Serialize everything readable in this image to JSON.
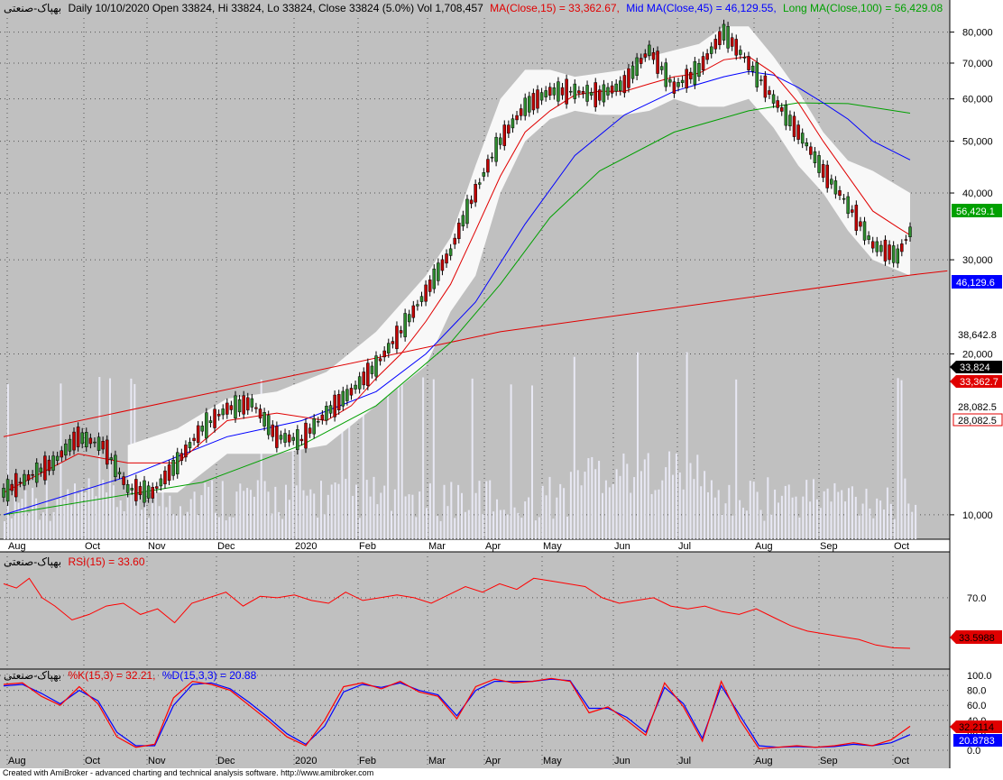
{
  "colors": {
    "bg": "#c0c0c0",
    "price_red": "#e00000",
    "mid_blue": "#0000ff",
    "long_green": "#00a000",
    "band": "#ffffff",
    "rsi": "#ff0000",
    "k": "#ff0000",
    "d": "#0000ff"
  },
  "header": {
    "symbol": "بهپاک-صنعتی",
    "main": "Daily 10/10/2020 Open 33824, Hi 33824, Lo 33824, Close 33824 (5.0%) Vol 1,708,457",
    "ma": "MA(Close,15) = 33,362.67,",
    "mid": "Mid MA(Close,45) = 46,129.55,",
    "long": "Long MA(Close,100) = 56,429.08"
  },
  "rsi_header": {
    "symbol": "بهپاک-صنعتی",
    "label": "RSI(15) = 33.60"
  },
  "stoch_header": {
    "symbol": "بهپاک-صنعتی",
    "k": "%K(15,3) = 32.21,",
    "d": "%D(15,3,3) = 20.88"
  },
  "credits": "Created with AmiBroker - advanced charting and technical analysis software. http://www.amibroker.com",
  "value_badges": {
    "ma_long": "56,429.1",
    "ma_mid": "46,129.6",
    "lastclose": "38,642.8",
    "close": "33,824",
    "ma15": "33,362.7",
    "trend_a": "28,082.5",
    "trend_b": "28,082.5",
    "rsi": "33.5988",
    "k": "32.2114",
    "d": "20.8783"
  },
  "chart_data": [
    {
      "type": "candlestick",
      "name": "price",
      "ylim": [
        9000,
        85000
      ],
      "yticks": [
        {
          "v": 10000,
          "label": "10,000"
        },
        {
          "v": 20000,
          "label": "20,000"
        },
        {
          "v": 30000,
          "label": "30,000"
        },
        {
          "v": 40000,
          "label": "40,000"
        },
        {
          "v": 50000,
          "label": "50,000"
        },
        {
          "v": 60000,
          "label": "60,000"
        },
        {
          "v": 70000,
          "label": "70,000"
        },
        {
          "v": 80000,
          "label": "80,000"
        }
      ],
      "xticks": [
        "Aug",
        "Oct",
        "Nov",
        "Dec",
        "2020",
        "Feb",
        "Mar",
        "Apr",
        "May",
        "Jun",
        "Jul",
        "Aug",
        "Sep",
        "Oct"
      ],
      "close_points": [
        [
          0,
          11000
        ],
        [
          4,
          12500
        ],
        [
          6,
          14000
        ],
        [
          8,
          13500
        ],
        [
          10,
          11200
        ],
        [
          12,
          11000
        ],
        [
          14,
          12500
        ],
        [
          16,
          14500
        ],
        [
          18,
          15800
        ],
        [
          20,
          16200
        ],
        [
          22,
          14000
        ],
        [
          24,
          13800
        ],
        [
          26,
          15500
        ],
        [
          28,
          17000
        ],
        [
          30,
          19000
        ],
        [
          32,
          22000
        ],
        [
          34,
          26000
        ],
        [
          36,
          31000
        ],
        [
          38,
          40000
        ],
        [
          40,
          50000
        ],
        [
          42,
          58000
        ],
        [
          44,
          62000
        ],
        [
          46,
          62000
        ],
        [
          48,
          61000
        ],
        [
          50,
          64000
        ],
        [
          52,
          74000
        ],
        [
          54,
          63000
        ],
        [
          56,
          68000
        ],
        [
          58,
          80000
        ],
        [
          60,
          70000
        ],
        [
          62,
          60000
        ],
        [
          64,
          52000
        ],
        [
          66,
          44000
        ],
        [
          68,
          38000
        ],
        [
          70,
          32000
        ],
        [
          72,
          30500
        ],
        [
          73,
          33824
        ]
      ],
      "ma15": [
        [
          0,
          11000
        ],
        [
          6,
          13000
        ],
        [
          10,
          12500
        ],
        [
          14,
          12500
        ],
        [
          18,
          15000
        ],
        [
          22,
          15500
        ],
        [
          26,
          15000
        ],
        [
          28,
          16000
        ],
        [
          30,
          18000
        ],
        [
          32,
          20000
        ],
        [
          34,
          23000
        ],
        [
          36,
          27000
        ],
        [
          38,
          34000
        ],
        [
          40,
          43000
        ],
        [
          42,
          52000
        ],
        [
          44,
          57000
        ],
        [
          46,
          61000
        ],
        [
          48,
          62000
        ],
        [
          50,
          62000
        ],
        [
          52,
          64000
        ],
        [
          54,
          66000
        ],
        [
          56,
          67000
        ],
        [
          58,
          71000
        ],
        [
          60,
          72000
        ],
        [
          62,
          67000
        ],
        [
          64,
          59000
        ],
        [
          66,
          50000
        ],
        [
          68,
          43000
        ],
        [
          70,
          37000
        ],
        [
          72,
          34500
        ],
        [
          73,
          33362.67
        ]
      ],
      "ma45": [
        [
          0,
          10000
        ],
        [
          10,
          11800
        ],
        [
          18,
          14000
        ],
        [
          24,
          15000
        ],
        [
          30,
          17000
        ],
        [
          34,
          20000
        ],
        [
          38,
          25000
        ],
        [
          42,
          35000
        ],
        [
          46,
          47000
        ],
        [
          50,
          56000
        ],
        [
          54,
          62000
        ],
        [
          58,
          66000
        ],
        [
          60,
          67500
        ],
        [
          62,
          66500
        ],
        [
          64,
          63000
        ],
        [
          66,
          59000
        ],
        [
          68,
          55000
        ],
        [
          70,
          50000
        ],
        [
          73,
          46129.55
        ]
      ],
      "ma100": [
        [
          0,
          10000
        ],
        [
          16,
          11500
        ],
        [
          24,
          13500
        ],
        [
          30,
          16000
        ],
        [
          36,
          21000
        ],
        [
          40,
          27000
        ],
        [
          44,
          36000
        ],
        [
          48,
          44000
        ],
        [
          54,
          52000
        ],
        [
          60,
          57000
        ],
        [
          64,
          59000
        ],
        [
          68,
          58800
        ],
        [
          73,
          56429.08
        ]
      ],
      "band_upper": [
        [
          10,
          13500
        ],
        [
          14,
          14500
        ],
        [
          18,
          16500
        ],
        [
          22,
          17000
        ],
        [
          26,
          18500
        ],
        [
          30,
          22000
        ],
        [
          34,
          28000
        ],
        [
          36,
          33000
        ],
        [
          38,
          45000
        ],
        [
          40,
          60000
        ],
        [
          42,
          68000
        ],
        [
          44,
          68000
        ],
        [
          46,
          66000
        ],
        [
          50,
          68000
        ],
        [
          52,
          72000
        ],
        [
          54,
          74000
        ],
        [
          56,
          76000
        ],
        [
          58,
          82000
        ],
        [
          60,
          82000
        ],
        [
          62,
          72000
        ],
        [
          64,
          62000
        ],
        [
          66,
          52000
        ],
        [
          68,
          46000
        ],
        [
          70,
          44000
        ],
        [
          73,
          40000
        ]
      ],
      "band_lower": [
        [
          10,
          11000
        ],
        [
          14,
          11000
        ],
        [
          18,
          13000
        ],
        [
          22,
          13000
        ],
        [
          26,
          13500
        ],
        [
          30,
          16000
        ],
        [
          34,
          19000
        ],
        [
          36,
          24000
        ],
        [
          38,
          28000
        ],
        [
          40,
          40000
        ],
        [
          42,
          50000
        ],
        [
          44,
          55000
        ],
        [
          46,
          57000
        ],
        [
          48,
          56000
        ],
        [
          50,
          56000
        ],
        [
          52,
          57000
        ],
        [
          54,
          60000
        ],
        [
          56,
          58000
        ],
        [
          58,
          58000
        ],
        [
          60,
          60000
        ],
        [
          62,
          53000
        ],
        [
          64,
          45000
        ],
        [
          66,
          40000
        ],
        [
          68,
          34000
        ],
        [
          70,
          30000
        ],
        [
          73,
          28000
        ]
      ],
      "trendline_upper": [
        [
          0,
          14000
        ],
        [
          40,
          22000
        ],
        [
          73,
          28082.5
        ],
        [
          76,
          28600
        ]
      ],
      "trendline_lower": [
        [
          0,
          9500
        ],
        [
          30,
          15000
        ],
        [
          50,
          22000
        ]
      ]
    },
    {
      "type": "line",
      "name": "RSI(15)",
      "ylim": [
        20,
        90
      ],
      "yticks": [
        {
          "v": 70,
          "label": "70.0"
        }
      ],
      "values": [
        [
          0,
          80
        ],
        [
          3,
          77
        ],
        [
          6,
          84
        ],
        [
          9,
          70
        ],
        [
          12,
          64
        ],
        [
          16,
          54
        ],
        [
          20,
          58
        ],
        [
          24,
          64
        ],
        [
          28,
          66
        ],
        [
          32,
          58
        ],
        [
          36,
          62
        ],
        [
          40,
          52
        ],
        [
          44,
          66
        ],
        [
          48,
          70
        ],
        [
          52,
          74
        ],
        [
          56,
          64
        ],
        [
          60,
          71
        ],
        [
          64,
          70
        ],
        [
          68,
          72
        ],
        [
          72,
          68
        ],
        [
          76,
          66
        ],
        [
          80,
          74
        ],
        [
          84,
          68
        ],
        [
          88,
          70
        ],
        [
          92,
          72
        ],
        [
          96,
          70
        ],
        [
          100,
          66
        ],
        [
          104,
          72
        ],
        [
          108,
          78
        ],
        [
          112,
          74
        ],
        [
          116,
          80
        ],
        [
          120,
          76
        ],
        [
          124,
          84
        ],
        [
          128,
          82
        ],
        [
          132,
          80
        ],
        [
          136,
          78
        ],
        [
          140,
          70
        ],
        [
          144,
          66
        ],
        [
          148,
          68
        ],
        [
          152,
          70
        ],
        [
          156,
          64
        ],
        [
          160,
          62
        ],
        [
          164,
          64
        ],
        [
          168,
          60
        ],
        [
          172,
          58
        ],
        [
          176,
          62
        ],
        [
          180,
          56
        ],
        [
          184,
          50
        ],
        [
          188,
          46
        ],
        [
          192,
          44
        ],
        [
          196,
          42
        ],
        [
          200,
          40
        ],
        [
          204,
          36
        ],
        [
          208,
          34
        ],
        [
          212,
          33.6
        ]
      ]
    },
    {
      "type": "line",
      "name": "Stochastic",
      "ylim": [
        0,
        100
      ],
      "yticks": [
        {
          "v": 100,
          "label": "100.0"
        },
        {
          "v": 80,
          "label": "80.0"
        },
        {
          "v": 60,
          "label": "60.0"
        },
        {
          "v": 40,
          "label": "40.0"
        },
        {
          "v": 20,
          "label": "20.0"
        },
        {
          "v": 0,
          "label": "0.0"
        }
      ],
      "k_values": [
        [
          0,
          88
        ],
        [
          4,
          90
        ],
        [
          8,
          72
        ],
        [
          12,
          60
        ],
        [
          16,
          85
        ],
        [
          20,
          62
        ],
        [
          24,
          18
        ],
        [
          28,
          4
        ],
        [
          32,
          8
        ],
        [
          36,
          70
        ],
        [
          40,
          92
        ],
        [
          44,
          88
        ],
        [
          48,
          80
        ],
        [
          52,
          60
        ],
        [
          56,
          40
        ],
        [
          60,
          18
        ],
        [
          64,
          6
        ],
        [
          68,
          40
        ],
        [
          72,
          85
        ],
        [
          76,
          90
        ],
        [
          80,
          82
        ],
        [
          84,
          92
        ],
        [
          88,
          78
        ],
        [
          92,
          72
        ],
        [
          96,
          42
        ],
        [
          100,
          85
        ],
        [
          104,
          95
        ],
        [
          108,
          90
        ],
        [
          112,
          92
        ],
        [
          116,
          96
        ],
        [
          120,
          92
        ],
        [
          124,
          50
        ],
        [
          128,
          58
        ],
        [
          132,
          40
        ],
        [
          136,
          20
        ],
        [
          140,
          90
        ],
        [
          144,
          58
        ],
        [
          148,
          12
        ],
        [
          152,
          92
        ],
        [
          156,
          40
        ],
        [
          160,
          2
        ],
        [
          164,
          4
        ],
        [
          168,
          6
        ],
        [
          172,
          4
        ],
        [
          176,
          6
        ],
        [
          180,
          10
        ],
        [
          184,
          6
        ],
        [
          188,
          14
        ],
        [
          192,
          32
        ]
      ],
      "d_values": [
        [
          0,
          86
        ],
        [
          4,
          88
        ],
        [
          8,
          76
        ],
        [
          12,
          62
        ],
        [
          16,
          80
        ],
        [
          20,
          66
        ],
        [
          24,
          24
        ],
        [
          28,
          6
        ],
        [
          32,
          6
        ],
        [
          36,
          60
        ],
        [
          40,
          88
        ],
        [
          44,
          90
        ],
        [
          48,
          82
        ],
        [
          52,
          64
        ],
        [
          56,
          44
        ],
        [
          60,
          22
        ],
        [
          64,
          8
        ],
        [
          68,
          32
        ],
        [
          72,
          78
        ],
        [
          76,
          88
        ],
        [
          80,
          84
        ],
        [
          84,
          90
        ],
        [
          88,
          80
        ],
        [
          92,
          74
        ],
        [
          96,
          46
        ],
        [
          100,
          80
        ],
        [
          104,
          92
        ],
        [
          108,
          92
        ],
        [
          112,
          92
        ],
        [
          116,
          95
        ],
        [
          120,
          93
        ],
        [
          124,
          56
        ],
        [
          128,
          56
        ],
        [
          132,
          44
        ],
        [
          136,
          24
        ],
        [
          140,
          84
        ],
        [
          144,
          62
        ],
        [
          148,
          16
        ],
        [
          152,
          86
        ],
        [
          156,
          46
        ],
        [
          160,
          6
        ],
        [
          164,
          4
        ],
        [
          168,
          5
        ],
        [
          172,
          4
        ],
        [
          176,
          5
        ],
        [
          180,
          8
        ],
        [
          184,
          6
        ],
        [
          188,
          10
        ],
        [
          192,
          20.88
        ]
      ]
    }
  ]
}
